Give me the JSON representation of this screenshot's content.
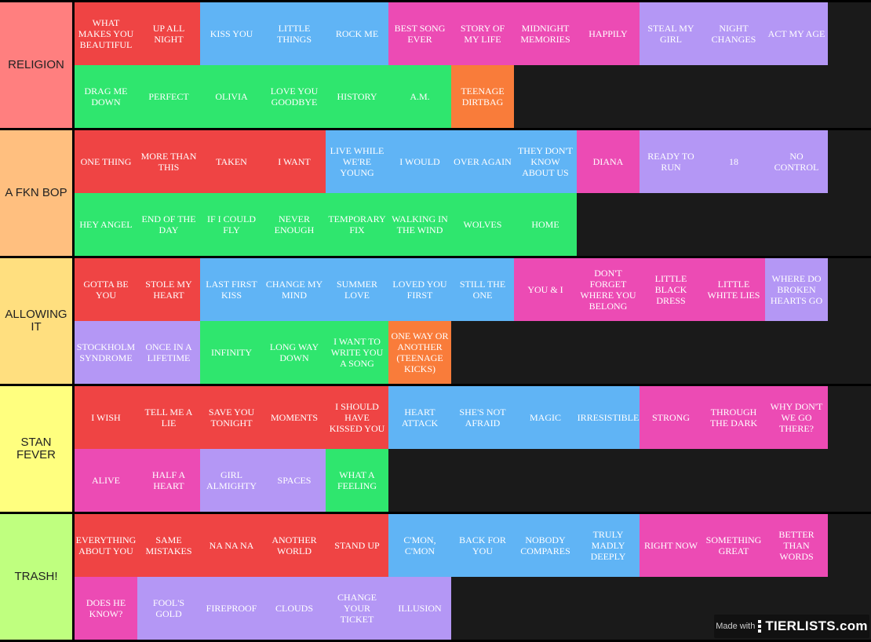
{
  "colors": {
    "red": "#ef4444",
    "blue": "#60b4f5",
    "pink": "#ec4bb4",
    "purple": "#b497f5",
    "green": "#2fe66e",
    "orange": "#f97c3a"
  },
  "tiers": [
    {
      "label": "RELIGION",
      "color": "#ff7f7f",
      "items": [
        {
          "text": "WHAT MAKES YOU BEAUTIFUL",
          "color": "red"
        },
        {
          "text": "UP ALL NIGHT",
          "color": "red"
        },
        {
          "text": "KISS YOU",
          "color": "blue"
        },
        {
          "text": "LITTLE THINGS",
          "color": "blue"
        },
        {
          "text": "ROCK ME",
          "color": "blue"
        },
        {
          "text": "BEST SONG EVER",
          "color": "pink"
        },
        {
          "text": "STORY OF MY LIFE",
          "color": "pink"
        },
        {
          "text": "MIDNIGHT MEMORIES",
          "color": "pink"
        },
        {
          "text": "HAPPILY",
          "color": "pink"
        },
        {
          "text": "STEAL MY GIRL",
          "color": "purple"
        },
        {
          "text": "NIGHT CHANGES",
          "color": "purple"
        },
        {
          "text": "ACT MY AGE",
          "color": "purple"
        },
        {
          "text": "DRAG ME DOWN",
          "color": "green"
        },
        {
          "text": "PERFECT",
          "color": "green"
        },
        {
          "text": "OLIVIA",
          "color": "green"
        },
        {
          "text": "LOVE YOU GOODBYE",
          "color": "green"
        },
        {
          "text": "HISTORY",
          "color": "green"
        },
        {
          "text": "A.M.",
          "color": "green"
        },
        {
          "text": "TEENAGE DIRTBAG",
          "color": "orange"
        }
      ]
    },
    {
      "label": "A FKN BOP",
      "color": "#ffbf7f",
      "items": [
        {
          "text": "ONE THING",
          "color": "red"
        },
        {
          "text": "MORE THAN THIS",
          "color": "red"
        },
        {
          "text": "TAKEN",
          "color": "red"
        },
        {
          "text": "I WANT",
          "color": "red"
        },
        {
          "text": "LIVE WHILE WE'RE YOUNG",
          "color": "blue"
        },
        {
          "text": "I WOULD",
          "color": "blue"
        },
        {
          "text": "OVER AGAIN",
          "color": "blue"
        },
        {
          "text": "THEY DON'T KNOW ABOUT US",
          "color": "blue"
        },
        {
          "text": "DIANA",
          "color": "pink"
        },
        {
          "text": "READY TO RUN",
          "color": "purple"
        },
        {
          "text": "18",
          "color": "purple"
        },
        {
          "text": "NO CONTROL",
          "color": "purple"
        },
        {
          "text": "HEY ANGEL",
          "color": "green"
        },
        {
          "text": "END OF THE DAY",
          "color": "green"
        },
        {
          "text": "IF I COULD FLY",
          "color": "green"
        },
        {
          "text": "NEVER ENOUGH",
          "color": "green"
        },
        {
          "text": "TEMPORARY FIX",
          "color": "green"
        },
        {
          "text": "WALKING IN THE WIND",
          "color": "green"
        },
        {
          "text": "WOLVES",
          "color": "green"
        },
        {
          "text": "HOME",
          "color": "green"
        }
      ]
    },
    {
      "label": "ALLOWING IT",
      "color": "#ffdf7f",
      "items": [
        {
          "text": "GOTTA BE YOU",
          "color": "red"
        },
        {
          "text": "STOLE MY HEART",
          "color": "red"
        },
        {
          "text": "LAST FIRST KISS",
          "color": "blue"
        },
        {
          "text": "CHANGE MY MIND",
          "color": "blue"
        },
        {
          "text": "SUMMER LOVE",
          "color": "blue"
        },
        {
          "text": "LOVED YOU FIRST",
          "color": "blue"
        },
        {
          "text": "STILL THE ONE",
          "color": "blue"
        },
        {
          "text": "YOU & I",
          "color": "pink"
        },
        {
          "text": "DON'T FORGET WHERE YOU BELONG",
          "color": "pink"
        },
        {
          "text": "LITTLE BLACK DRESS",
          "color": "pink"
        },
        {
          "text": "LITTLE WHITE LIES",
          "color": "pink"
        },
        {
          "text": "WHERE DO BROKEN HEARTS GO",
          "color": "purple"
        },
        {
          "text": "STOCKHOLM SYNDROME",
          "color": "purple"
        },
        {
          "text": "ONCE IN A LIFETIME",
          "color": "purple"
        },
        {
          "text": "INFINITY",
          "color": "green"
        },
        {
          "text": "LONG WAY DOWN",
          "color": "green"
        },
        {
          "text": "I WANT TO WRITE YOU A SONG",
          "color": "green"
        },
        {
          "text": "ONE WAY OR ANOTHER (TEENAGE KICKS)",
          "color": "orange"
        }
      ]
    },
    {
      "label": "STAN FEVER",
      "color": "#ffff7f",
      "items": [
        {
          "text": "I WISH",
          "color": "red"
        },
        {
          "text": "TELL ME A LIE",
          "color": "red"
        },
        {
          "text": "SAVE YOU TONIGHT",
          "color": "red"
        },
        {
          "text": "MOMENTS",
          "color": "red"
        },
        {
          "text": "I SHOULD HAVE KISSED YOU",
          "color": "red"
        },
        {
          "text": "HEART ATTACK",
          "color": "blue"
        },
        {
          "text": "SHE'S NOT AFRAID",
          "color": "blue"
        },
        {
          "text": "MAGIC",
          "color": "blue"
        },
        {
          "text": "IRRESISTIBLE",
          "color": "blue"
        },
        {
          "text": "STRONG",
          "color": "pink"
        },
        {
          "text": "THROUGH THE DARK",
          "color": "pink"
        },
        {
          "text": "WHY DON'T WE GO THERE?",
          "color": "pink"
        },
        {
          "text": "ALIVE",
          "color": "pink"
        },
        {
          "text": "HALF A HEART",
          "color": "pink"
        },
        {
          "text": "GIRL ALMIGHTY",
          "color": "purple"
        },
        {
          "text": "SPACES",
          "color": "purple"
        },
        {
          "text": "WHAT A FEELING",
          "color": "green"
        }
      ]
    },
    {
      "label": "TRASH!",
      "color": "#bfff7f",
      "items": [
        {
          "text": "EVERYTHING ABOUT YOU",
          "color": "red"
        },
        {
          "text": "SAME MISTAKES",
          "color": "red"
        },
        {
          "text": "NA NA NA",
          "color": "red"
        },
        {
          "text": "ANOTHER WORLD",
          "color": "red"
        },
        {
          "text": "STAND UP",
          "color": "red"
        },
        {
          "text": "C'MON, C'MON",
          "color": "blue"
        },
        {
          "text": "BACK FOR YOU",
          "color": "blue"
        },
        {
          "text": "NOBODY COMPARES",
          "color": "blue"
        },
        {
          "text": "TRULY MADLY DEEPLY",
          "color": "blue"
        },
        {
          "text": "RIGHT NOW",
          "color": "pink"
        },
        {
          "text": "SOMETHING GREAT",
          "color": "pink"
        },
        {
          "text": "BETTER THAN WORDS",
          "color": "pink"
        },
        {
          "text": "DOES HE KNOW?",
          "color": "pink"
        },
        {
          "text": "FOOL'S GOLD",
          "color": "purple"
        },
        {
          "text": "FIREPROOF",
          "color": "purple"
        },
        {
          "text": "CLOUDS",
          "color": "purple"
        },
        {
          "text": "CHANGE YOUR TICKET",
          "color": "purple"
        },
        {
          "text": "ILLUSION",
          "color": "purple"
        }
      ]
    }
  ],
  "watermark": {
    "made_with": "Made with",
    "brand": "TIERLISTS.com"
  }
}
